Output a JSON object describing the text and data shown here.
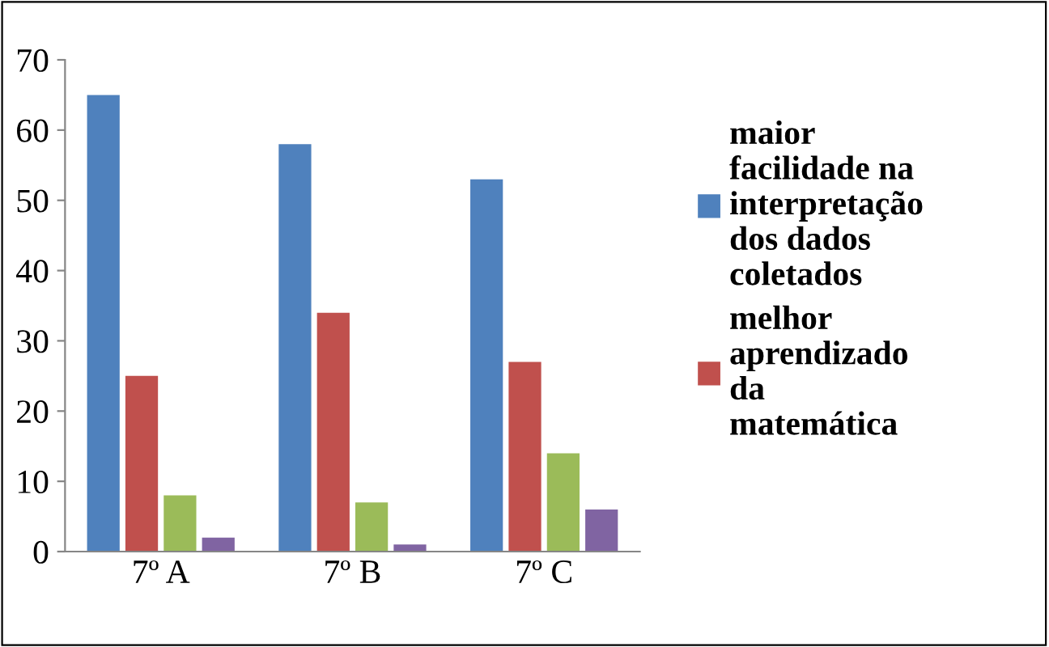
{
  "chart_data": {
    "type": "bar",
    "categories": [
      "7º A",
      "7º B",
      "7º C"
    ],
    "series": [
      {
        "name": "maior\nfacilidade na\ninterpretação\ndos dados\ncoletados",
        "color": "#4f81bd",
        "values": [
          65,
          58,
          53
        ]
      },
      {
        "name": "melhor\naprendizado\nda\nmatemática",
        "color": "#c0504d",
        "values": [
          25,
          34,
          27
        ]
      },
      {
        "color": "#9bbb59",
        "values": [
          8,
          7,
          14
        ]
      },
      {
        "color": "#8064a2",
        "values": [
          2,
          1,
          6
        ]
      }
    ],
    "ylim": [
      0,
      70
    ],
    "yticks": [
      0,
      10,
      20,
      30,
      40,
      50,
      60,
      70
    ],
    "grid": false,
    "legend": "right"
  }
}
